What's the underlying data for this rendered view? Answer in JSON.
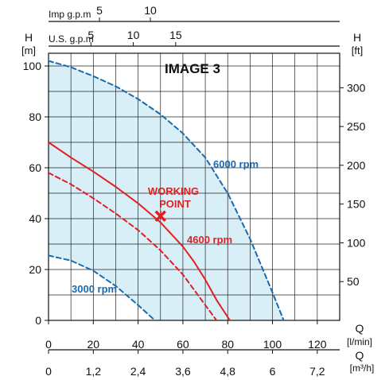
{
  "chart_data": {
    "type": "line",
    "title": "IMAGE 3",
    "colors": {
      "band_fill": "#d9eff8",
      "speed_line": "#1a6aae",
      "duty_line": "#e02020",
      "grid": "#222222",
      "text": "#111111"
    },
    "axes": {
      "x_lmin": {
        "label_name": "Q",
        "label_unit": "[l/min]",
        "min": 0,
        "max": 130,
        "ticks": [
          0,
          20,
          40,
          60,
          80,
          100,
          120
        ]
      },
      "x_m3h": {
        "label_name": "Q",
        "label_unit": "[m³/h]",
        "min": 0,
        "max": 7.8,
        "ticks": [
          "0",
          "1,2",
          "2,4",
          "3,6",
          "4,8",
          "6",
          "7,2"
        ]
      },
      "x_usgpm": {
        "label": "U.S. g.p.m",
        "ticks": [
          5,
          10,
          15
        ]
      },
      "x_impgpm": {
        "label": "Imp g.p.m",
        "ticks": [
          5,
          10
        ]
      },
      "y_m": {
        "label_name": "H",
        "label_unit": "[m]",
        "min": 0,
        "max": 105,
        "ticks": [
          0,
          20,
          40,
          60,
          80,
          100
        ]
      },
      "y_ft": {
        "label_name": "H",
        "label_unit": "[ft]",
        "ticks": [
          50,
          100,
          150,
          200,
          250,
          300
        ]
      }
    },
    "grid": true,
    "series": [
      {
        "name": "6000 rpm",
        "style": "dashed",
        "color": "#1a6aae",
        "x": [
          0,
          10,
          20,
          30,
          40,
          50,
          60,
          70,
          80,
          90,
          100,
          105
        ],
        "y": [
          102,
          99.5,
          96,
          92,
          87,
          81,
          73.5,
          64,
          50,
          32,
          11,
          0
        ]
      },
      {
        "name": "3000 rpm",
        "style": "dashed",
        "color": "#1a6aae",
        "x": [
          0,
          10,
          20,
          30,
          40,
          47.5
        ],
        "y": [
          25.5,
          23.5,
          19.5,
          13.5,
          6,
          0
        ]
      },
      {
        "name": "4600 rpm",
        "style": "solid",
        "color": "#e02020",
        "x": [
          0,
          10,
          20,
          30,
          40,
          50,
          60,
          65,
          70,
          75,
          81
        ],
        "y": [
          70,
          64,
          58.5,
          52.5,
          46,
          38.5,
          29,
          23,
          16,
          8,
          0
        ]
      },
      {
        "name": "",
        "style": "dashed",
        "color": "#e02020",
        "x": [
          0,
          10,
          20,
          30,
          40,
          50,
          60,
          70,
          75
        ],
        "y": [
          58,
          53.5,
          48,
          42,
          35.5,
          27.5,
          18,
          6,
          0
        ]
      }
    ],
    "working_point": {
      "label_line1": "WORKING",
      "label_line2": "POINT",
      "x": 50,
      "y": 41
    }
  }
}
